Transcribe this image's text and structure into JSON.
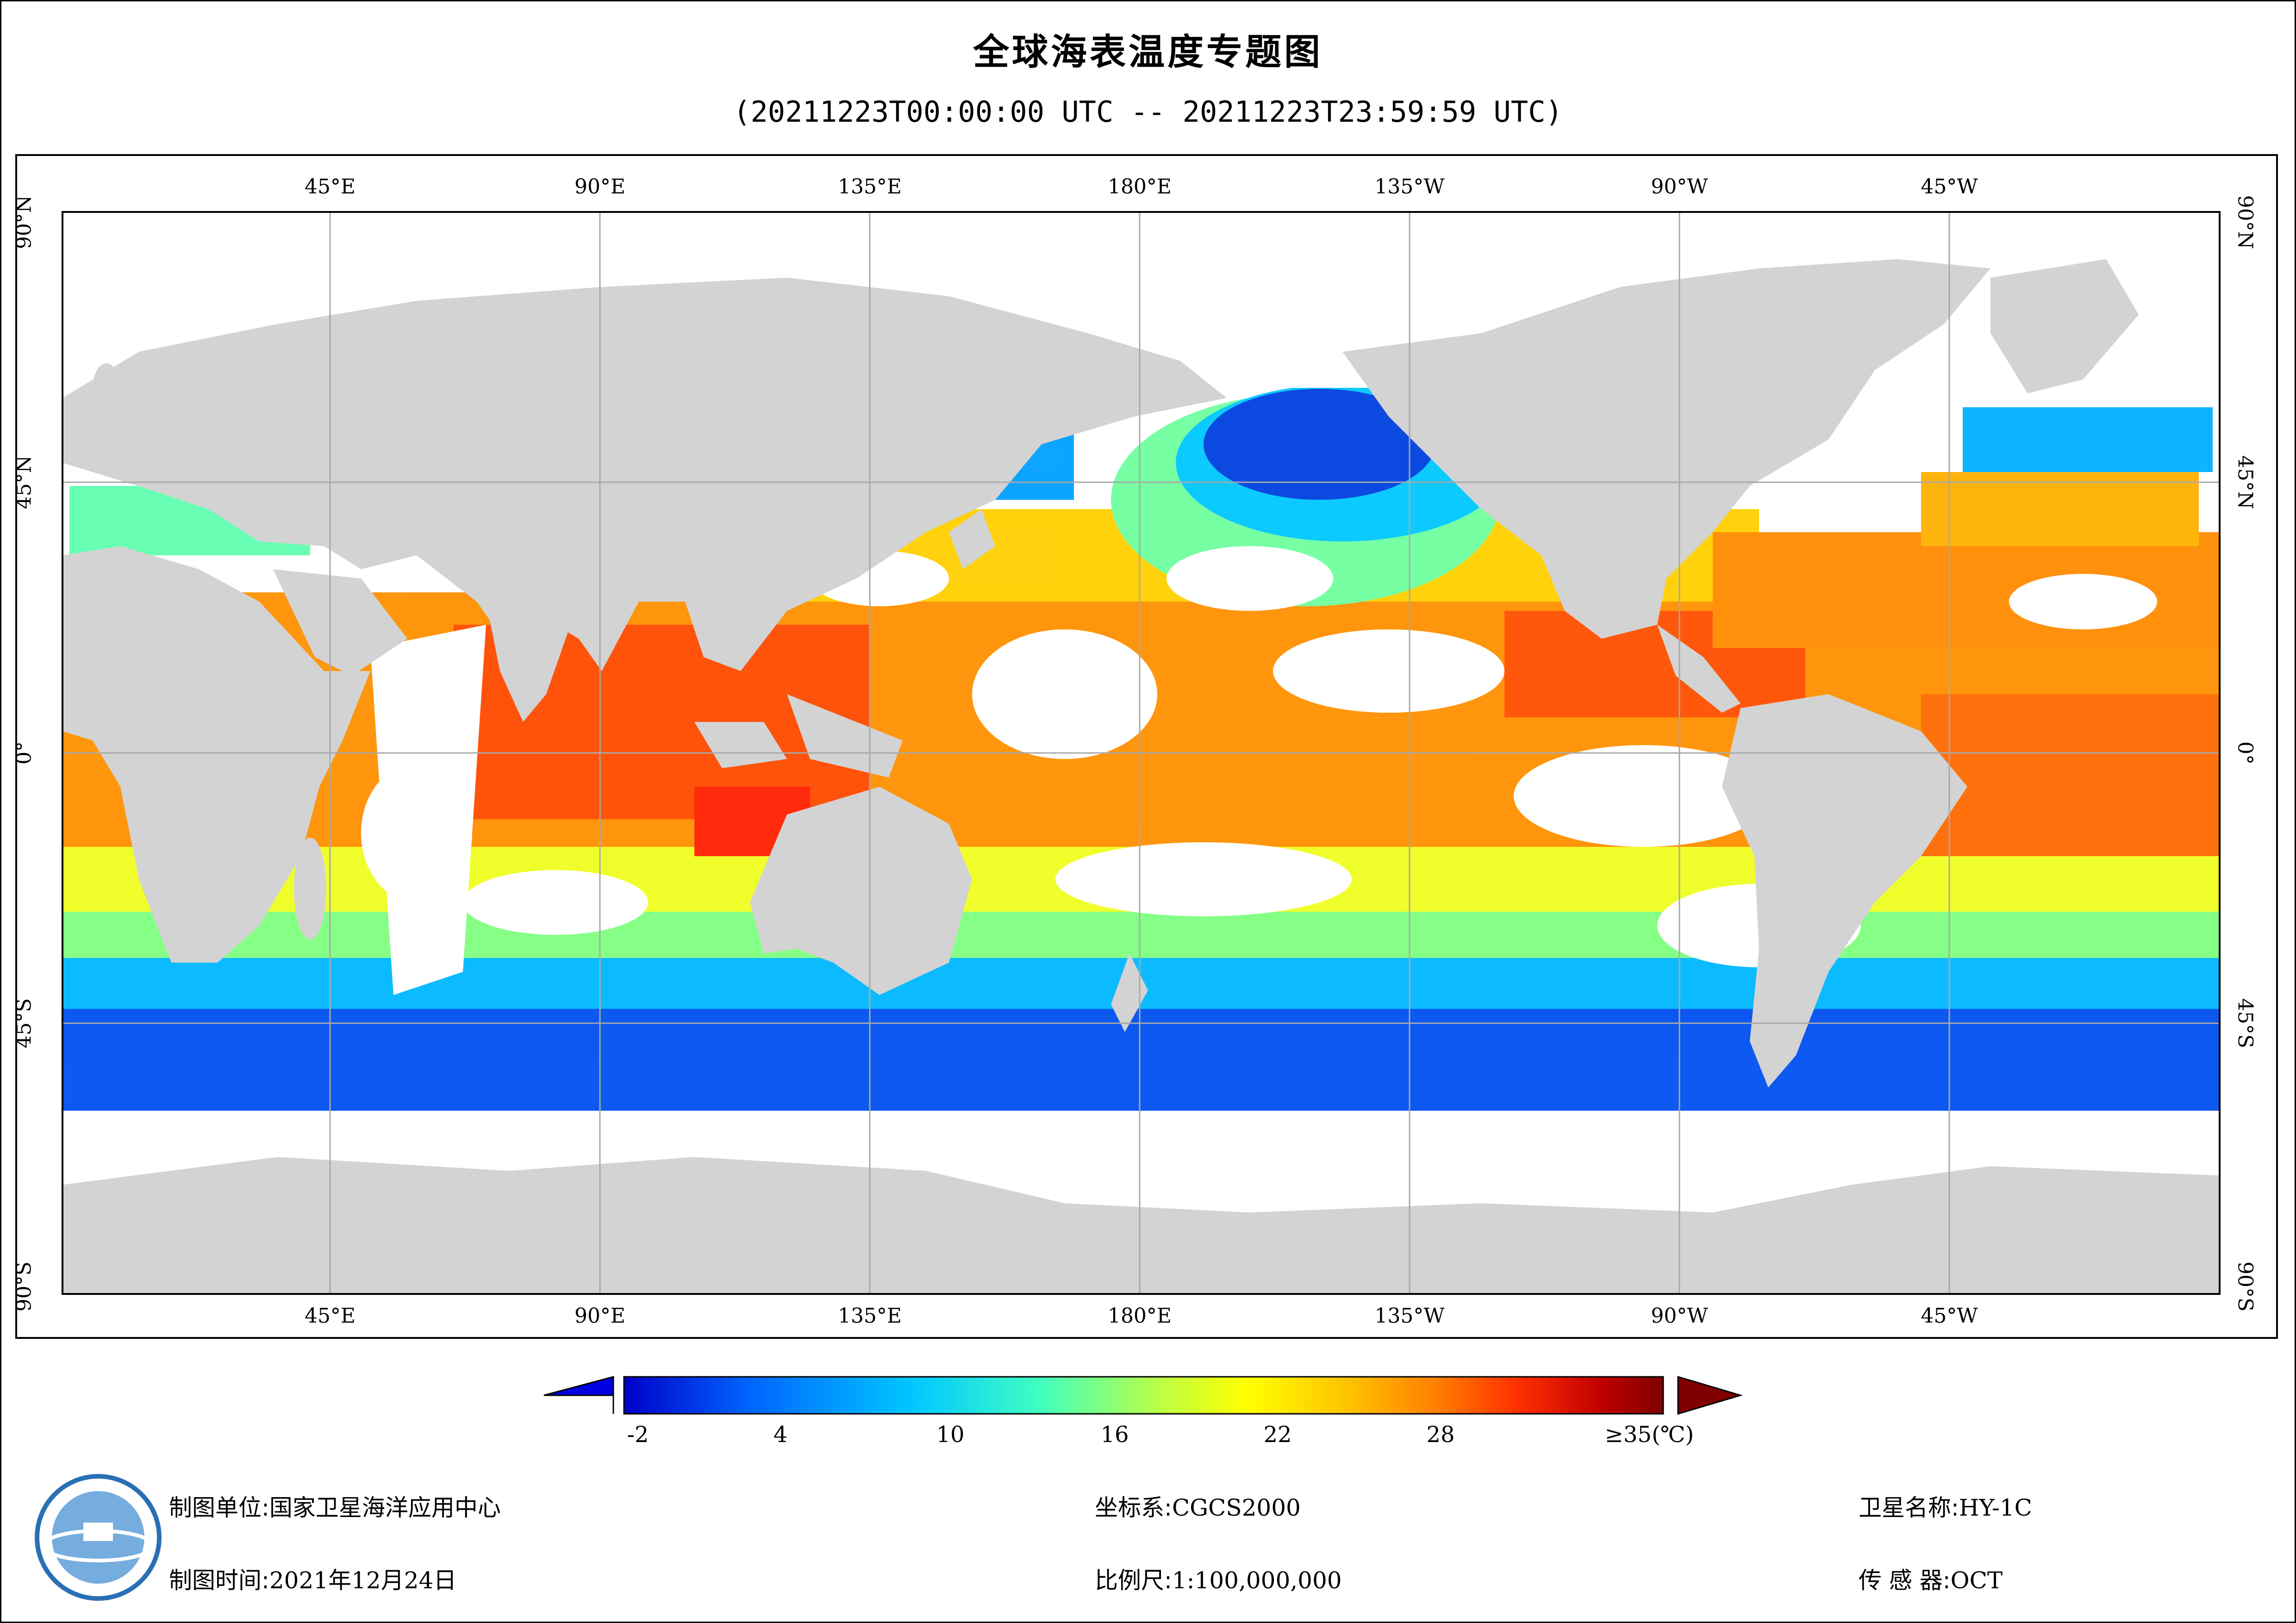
{
  "title": "全球海表温度专题图",
  "subtitle": "(20211223T00:00:00 UTC -- 20211223T23:59:59 UTC)",
  "map": {
    "top_lon_labels": [
      "45°E",
      "90°E",
      "135°E",
      "180°E",
      "135°W",
      "90°W",
      "45°W"
    ],
    "bottom_lon_labels": [
      "45°E",
      "90°E",
      "135°E",
      "180°E",
      "135°W",
      "90°W",
      "45°W"
    ],
    "left_lat_labels": [
      "90°N",
      "45°N",
      "0°",
      "45°S",
      "90°S"
    ],
    "right_lat_labels": [
      "90°N",
      "45°N",
      "0°",
      "45°S",
      "90°S"
    ],
    "colors": {
      "land": "#d3d3d3",
      "no_data": "#ffffff",
      "grid": "#a9a9a9"
    }
  },
  "colorbar": {
    "labels": [
      "-2",
      "4",
      "10",
      "16",
      "22",
      "28",
      "≥35(℃)"
    ],
    "min": -2,
    "max": 35,
    "colors": [
      "#0000c8",
      "#0064ff",
      "#00c8ff",
      "#40ffc0",
      "#c0ff40",
      "#ffff00",
      "#ffc000",
      "#ff8000",
      "#ff3000",
      "#c00000",
      "#800000"
    ]
  },
  "footer": {
    "org_label": "制图单位:",
    "org_value": "国家卫星海洋应用中心",
    "time_label": "制图时间:",
    "time_value": "2021年12月24日",
    "crs_label": "坐标系:",
    "crs_value": "CGCS2000",
    "scale_label": "比例尺:",
    "scale_value": "1:100,000,000",
    "sat_label": "卫星名称:",
    "sat_value": "HY-1C",
    "sensor_label": "传 感 器:",
    "sensor_value": "OCT"
  },
  "logo": {
    "icon": "nsoas-logo-icon"
  }
}
